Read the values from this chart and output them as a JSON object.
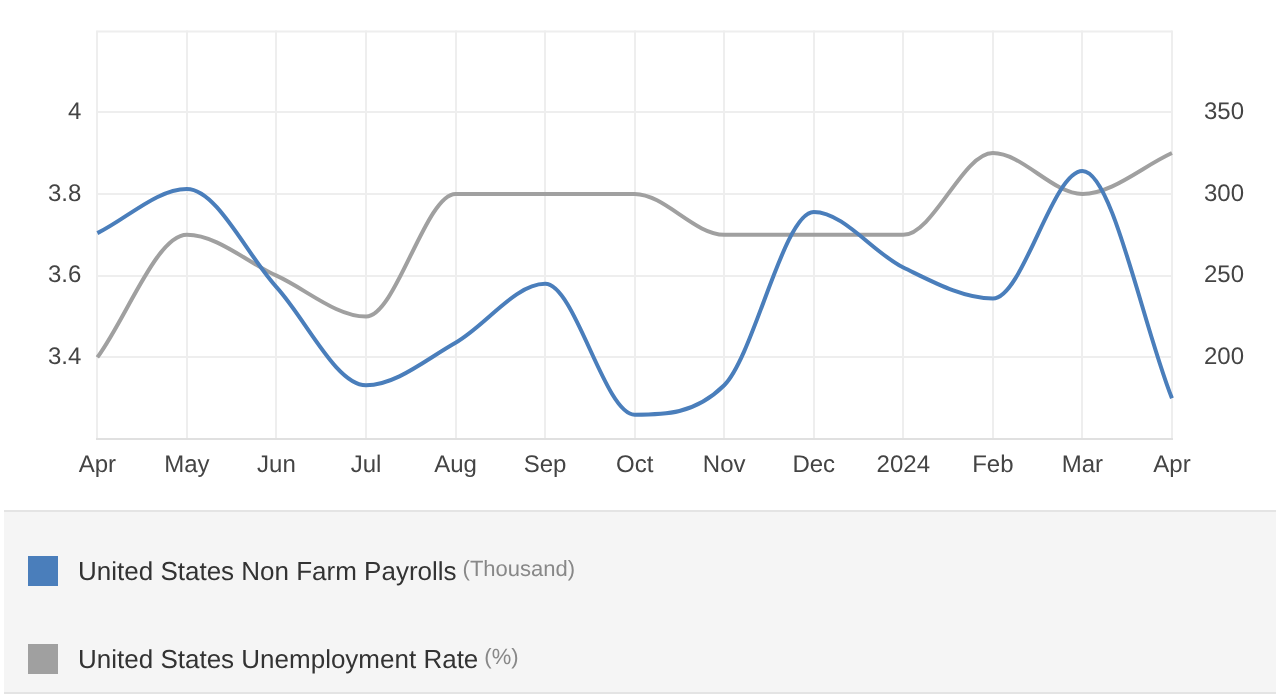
{
  "chart_data": {
    "type": "line",
    "categories": [
      "Apr",
      "May",
      "Jun",
      "Jul",
      "Aug",
      "Sep",
      "Oct",
      "Nov",
      "Dec",
      "2024",
      "Feb",
      "Mar",
      "Apr"
    ],
    "series": [
      {
        "name": "United States Non Farm Payrolls (Thousand)",
        "color": "#4a7ebb",
        "axis": "y2",
        "values": [
          276,
          303,
          243,
          183,
          209,
          245,
          165,
          183,
          289,
          255,
          236,
          314,
          175
        ]
      },
      {
        "name": "United States Unemployment Rate (%)",
        "color": "#a0a0a0",
        "axis": "y",
        "values": [
          3.4,
          3.7,
          3.6,
          3.5,
          3.8,
          3.8,
          3.8,
          3.7,
          3.7,
          3.7,
          3.9,
          3.8,
          3.9
        ]
      }
    ],
    "ylim": [
      3.2,
      4.2
    ],
    "yticks": [
      3.4,
      3.6,
      3.8,
      4
    ],
    "y2lim": [
      150,
      400
    ],
    "y2ticks": [
      200,
      250,
      300,
      350
    ],
    "grid": true,
    "legend": "bottom",
    "marker": "none",
    "line_style": "solid"
  }
}
